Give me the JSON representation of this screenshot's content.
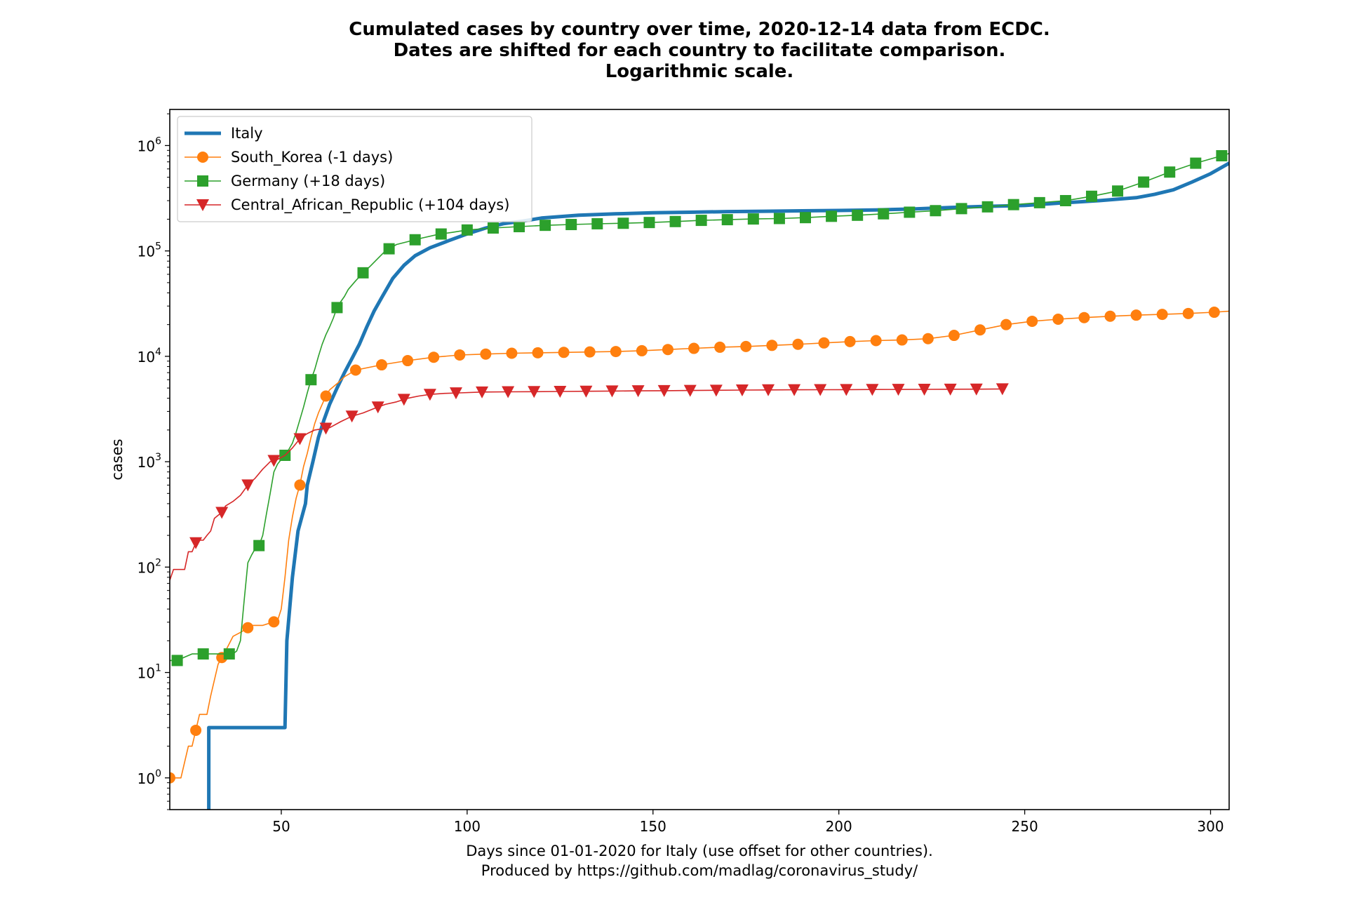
{
  "chart_data": {
    "type": "line",
    "title_lines": [
      "Cumulated cases by country over time, 2020-12-14 data from ECDC.",
      "Dates are shifted for each country to facilitate comparison.",
      "Logarithmic scale."
    ],
    "xlabel_lines": [
      "Days since 01-01-2020 for Italy (use offset for other countries).",
      "Produced by https://github.com/madlag/coronavirus_study/"
    ],
    "ylabel": "cases",
    "xlim": [
      20,
      305
    ],
    "ylim": [
      0.5,
      2200000
    ],
    "yscale": "log",
    "x_ticks": [
      50,
      100,
      150,
      200,
      250,
      300
    ],
    "x_tick_labels": [
      "50",
      "100",
      "150",
      "200",
      "250",
      "300"
    ],
    "y_ticks": [
      {
        "value": 1,
        "base": "10",
        "exp": "0"
      },
      {
        "value": 10,
        "base": "10",
        "exp": "1"
      },
      {
        "value": 100,
        "base": "10",
        "exp": "2"
      },
      {
        "value": 1000,
        "base": "10",
        "exp": "3"
      },
      {
        "value": 10000,
        "base": "10",
        "exp": "4"
      },
      {
        "value": 100000,
        "base": "10",
        "exp": "5"
      },
      {
        "value": 1000000,
        "base": "10",
        "exp": "6"
      }
    ],
    "grid": false,
    "legend_position": "top-left",
    "series": [
      {
        "name": "Italy",
        "color": "#1f77b4",
        "marker": "none",
        "line_width": "thick",
        "x": [
          30.5,
          30.5,
          51,
          51.5,
          53,
          54.5,
          56.5,
          57,
          58.5,
          60,
          61.5,
          63,
          65,
          67,
          69,
          71,
          73,
          75,
          77,
          80,
          83,
          86,
          90,
          95,
          100,
          105,
          110,
          115,
          120,
          130,
          140,
          150,
          160,
          170,
          180,
          190,
          200,
          210,
          220,
          230,
          240,
          250,
          260,
          270,
          280,
          285,
          290,
          295,
          300,
          305
        ],
        "y": [
          0.5,
          3,
          3,
          20,
          80,
          220,
          400,
          600,
          1000,
          1700,
          2500,
          3500,
          5000,
          7000,
          9500,
          13000,
          19000,
          27000,
          36000,
          55000,
          73000,
          90000,
          107000,
          125000,
          145000,
          165000,
          182000,
          192000,
          205000,
          218000,
          225000,
          230000,
          233000,
          236000,
          238000,
          240000,
          242000,
          245000,
          250000,
          258000,
          265000,
          270000,
          285000,
          300000,
          320000,
          345000,
          380000,
          450000,
          540000,
          680000
        ]
      },
      {
        "name": "South_Korea (-1 days)",
        "color": "#ff7f0e",
        "marker": "circle",
        "line_width": "thin",
        "x": [
          20,
          21,
          23,
          25,
          26,
          28,
          30,
          31,
          33,
          35,
          37,
          39,
          42,
          45,
          49,
          50,
          51,
          52,
          53,
          54,
          55,
          56,
          57,
          58,
          59,
          60,
          61,
          62,
          63,
          65,
          67,
          70,
          77,
          84,
          91,
          98,
          105,
          112,
          119,
          126,
          133,
          140,
          147,
          154,
          161,
          168,
          175,
          182,
          189,
          196,
          203,
          210,
          217,
          224,
          231,
          238,
          245,
          252,
          259,
          266,
          273,
          280,
          287,
          294,
          301,
          305
        ],
        "y": [
          1,
          1,
          1,
          2,
          2,
          4,
          4,
          6,
          12,
          16,
          22,
          24,
          28,
          28,
          31,
          40,
          80,
          180,
          300,
          450,
          600,
          900,
          1200,
          1700,
          2300,
          2900,
          3500,
          4200,
          4800,
          5500,
          6400,
          7400,
          8300,
          9100,
          9800,
          10300,
          10500,
          10700,
          10800,
          10900,
          11000,
          11100,
          11300,
          11600,
          11900,
          12200,
          12400,
          12700,
          13000,
          13400,
          13800,
          14100,
          14300,
          14700,
          15800,
          17800,
          20000,
          21500,
          22500,
          23300,
          24000,
          24600,
          25000,
          25500,
          26200,
          26800
        ],
        "markers_x": [
          20,
          27,
          34,
          41,
          48,
          55,
          62,
          70,
          77,
          84,
          91,
          98,
          105,
          112,
          119,
          126,
          133,
          140,
          147,
          154,
          161,
          168,
          175,
          182,
          189,
          196,
          203,
          210,
          217,
          224,
          231,
          238,
          245,
          252,
          259,
          266,
          273,
          280,
          287,
          294,
          301
        ]
      },
      {
        "name": "Germany (+18 days)",
        "color": "#2ca02c",
        "marker": "square",
        "line_width": "thin",
        "x": [
          20,
          22,
          24,
          26,
          28,
          30,
          33,
          35,
          37,
          38,
          39,
          40,
          41,
          42,
          43,
          44,
          45,
          46,
          47,
          48,
          49,
          50,
          51,
          52,
          53,
          54,
          55,
          56,
          57,
          58,
          59,
          60,
          61,
          62,
          63,
          64,
          65,
          66,
          67,
          68,
          70,
          72,
          74,
          76,
          78,
          81,
          85,
          88,
          92,
          96,
          100,
          107,
          114,
          121,
          128,
          135,
          142,
          149,
          156,
          163,
          170,
          177,
          184,
          191,
          198,
          205,
          212,
          219,
          226,
          233,
          240,
          247,
          254,
          261,
          268,
          275,
          282,
          289,
          296,
          303,
          305
        ],
        "y": [
          13,
          13,
          14,
          15,
          15,
          15,
          15,
          15,
          15,
          16,
          20,
          48,
          110,
          130,
          150,
          160,
          200,
          320,
          500,
          800,
          950,
          1050,
          1150,
          1300,
          1500,
          1900,
          2500,
          3300,
          4500,
          6000,
          7500,
          10000,
          13000,
          16000,
          19000,
          23000,
          29000,
          33000,
          37000,
          43000,
          52000,
          62000,
          72000,
          85000,
          100000,
          115000,
          125000,
          133000,
          143000,
          150000,
          158000,
          165000,
          170000,
          175000,
          178000,
          181000,
          183000,
          186000,
          190000,
          195000,
          198000,
          201000,
          203000,
          207000,
          213000,
          218000,
          225000,
          233000,
          241000,
          252000,
          262000,
          275000,
          287000,
          300000,
          330000,
          370000,
          450000,
          560000,
          680000,
          800000,
          840000
        ],
        "markers_x": [
          22,
          29,
          36,
          44,
          51,
          58,
          65,
          72,
          79,
          86,
          93,
          100,
          107,
          114,
          121,
          128,
          135,
          142,
          149,
          156,
          163,
          170,
          177,
          184,
          191,
          198,
          205,
          212,
          219,
          226,
          233,
          240,
          247,
          254,
          261,
          268,
          275,
          282,
          289,
          296,
          303
        ]
      },
      {
        "name": "Central_African_Republic (+104 days)",
        "color": "#d62728",
        "marker": "triangle-down",
        "line_width": "thin",
        "x": [
          20,
          21,
          23,
          24,
          25,
          26,
          27,
          28,
          29,
          30,
          31,
          32,
          33,
          34,
          35,
          37,
          39,
          41,
          43,
          45,
          47,
          49,
          51,
          53,
          55,
          57,
          59,
          61,
          63,
          66,
          69,
          72,
          75,
          78,
          81,
          84,
          87,
          90,
          94,
          98,
          104,
          111,
          118,
          125,
          132,
          139,
          146,
          153,
          160,
          167,
          174,
          181,
          188,
          195,
          202,
          209,
          216,
          223,
          230,
          237,
          244
        ],
        "y": [
          75,
          95,
          95,
          95,
          140,
          140,
          170,
          180,
          180,
          200,
          220,
          290,
          310,
          330,
          380,
          420,
          480,
          600,
          700,
          850,
          1000,
          1050,
          1150,
          1350,
          1650,
          1850,
          2000,
          2050,
          2100,
          2400,
          2700,
          2900,
          3200,
          3500,
          3700,
          4000,
          4200,
          4350,
          4450,
          4500,
          4580,
          4600,
          4620,
          4640,
          4660,
          4680,
          4700,
          4720,
          4740,
          4760,
          4780,
          4800,
          4810,
          4820,
          4830,
          4840,
          4850,
          4860,
          4870,
          4880,
          4900
        ],
        "markers_x": [
          27,
          34,
          41,
          48,
          55,
          62,
          69,
          76,
          83,
          90,
          97,
          104,
          111,
          118,
          125,
          132,
          139,
          146,
          153,
          160,
          167,
          174,
          181,
          188,
          195,
          202,
          209,
          216,
          223,
          230,
          237,
          244
        ]
      }
    ]
  }
}
